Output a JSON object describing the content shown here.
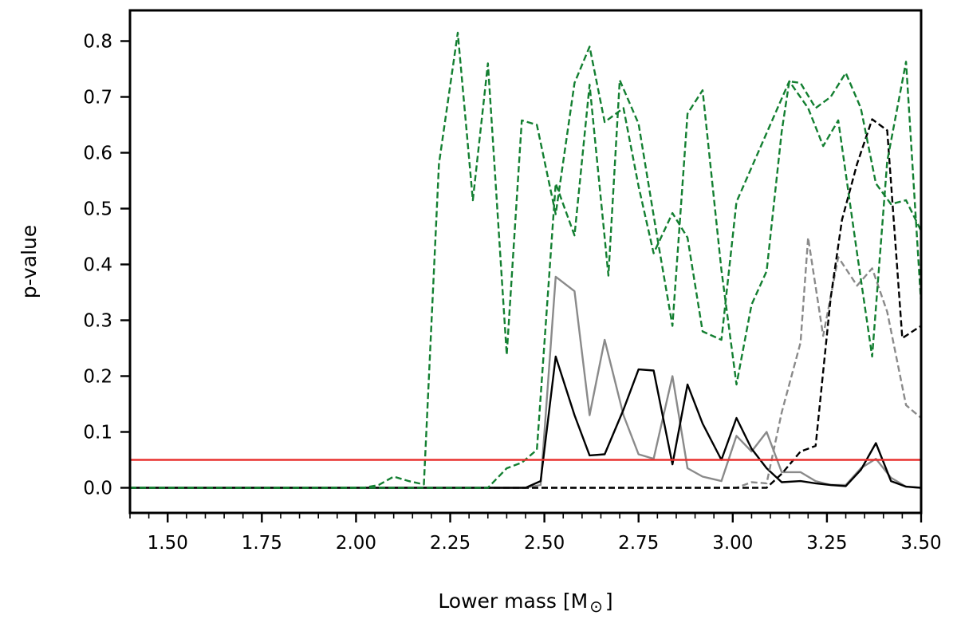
{
  "chart_data": {
    "type": "line",
    "xlabel": "Lower mass [M",
    "xlabel_unit_symbol": "⊙",
    "xlabel_suffix": "]",
    "ylabel": "p-value",
    "xlim": [
      1.4,
      3.5
    ],
    "ylim": [
      -0.045,
      0.855
    ],
    "xticks": [
      1.5,
      1.75,
      2.0,
      2.25,
      2.5,
      2.75,
      3.0,
      3.25,
      3.5
    ],
    "xtick_labels": [
      "1.50",
      "1.75",
      "2.00",
      "2.25",
      "2.50",
      "2.75",
      "3.00",
      "3.25",
      "3.50"
    ],
    "yticks": [
      0.0,
      0.1,
      0.2,
      0.3,
      0.4,
      0.5,
      0.6,
      0.7,
      0.8
    ],
    "ytick_labels": [
      "0.0",
      "0.1",
      "0.2",
      "0.3",
      "0.4",
      "0.5",
      "0.6",
      "0.7",
      "0.8"
    ],
    "x_minor_step": 0.05,
    "grid": false,
    "threshold": {
      "y": 0.05,
      "color": "#e8302f"
    },
    "series": [
      {
        "color": "#8a8a8a",
        "dashed": false,
        "x": [
          1.4,
          2.45,
          2.49,
          2.53,
          2.58,
          2.62,
          2.66,
          2.71,
          2.75,
          2.79,
          2.84,
          2.88,
          2.92,
          2.97,
          3.01,
          3.05,
          3.09,
          3.13,
          3.18,
          3.22,
          3.26,
          3.3,
          3.34,
          3.38,
          3.42,
          3.46,
          3.5
        ],
        "y": [
          0.0,
          0.0,
          0.005,
          0.378,
          0.352,
          0.13,
          0.265,
          0.13,
          0.06,
          0.052,
          0.2,
          0.035,
          0.02,
          0.012,
          0.093,
          0.065,
          0.1,
          0.028,
          0.028,
          0.012,
          0.005,
          0.005,
          0.035,
          0.052,
          0.018,
          0.002,
          0.0
        ]
      },
      {
        "color": "#000000",
        "dashed": false,
        "x": [
          1.4,
          2.45,
          2.49,
          2.53,
          2.58,
          2.62,
          2.66,
          2.71,
          2.75,
          2.79,
          2.84,
          2.88,
          2.92,
          2.97,
          3.01,
          3.05,
          3.09,
          3.13,
          3.18,
          3.22,
          3.26,
          3.3,
          3.34,
          3.38,
          3.42,
          3.46,
          3.5
        ],
        "y": [
          0.0,
          0.0,
          0.012,
          0.235,
          0.13,
          0.058,
          0.06,
          0.14,
          0.212,
          0.21,
          0.042,
          0.185,
          0.115,
          0.05,
          0.125,
          0.07,
          0.035,
          0.01,
          0.012,
          0.008,
          0.005,
          0.003,
          0.032,
          0.08,
          0.012,
          0.002,
          0.0
        ]
      },
      {
        "color": "#8a8a8a",
        "dashed": true,
        "x": [
          1.4,
          3.01,
          3.05,
          3.09,
          3.13,
          3.18,
          3.2,
          3.24,
          3.28,
          3.33,
          3.37,
          3.41,
          3.46,
          3.5
        ],
        "y": [
          0.0,
          0.0,
          0.01,
          0.008,
          0.135,
          0.26,
          0.448,
          0.272,
          0.413,
          0.362,
          0.393,
          0.315,
          0.148,
          0.125
        ]
      },
      {
        "color": "#000000",
        "dashed": true,
        "x": [
          1.4,
          3.05,
          3.09,
          3.13,
          3.18,
          3.22,
          3.26,
          3.29,
          3.33,
          3.37,
          3.41,
          3.45,
          3.5
        ],
        "y": [
          0.0,
          0.0,
          0.0,
          0.025,
          0.065,
          0.075,
          0.34,
          0.48,
          0.58,
          0.66,
          0.64,
          0.268,
          0.29
        ]
      },
      {
        "color": "#137f31",
        "dashed": true,
        "x": [
          1.4,
          2.35,
          2.4,
          2.44,
          2.48,
          2.53,
          2.58,
          2.62,
          2.67,
          2.7,
          2.75,
          2.8,
          2.84,
          2.88,
          2.92,
          2.97,
          3.01,
          3.05,
          3.09,
          3.13,
          3.15,
          3.18,
          3.22,
          3.26,
          3.3,
          3.34,
          3.38,
          3.42,
          3.46,
          3.5
        ],
        "y": [
          0.0,
          0.0,
          0.035,
          0.045,
          0.068,
          0.545,
          0.452,
          0.722,
          0.38,
          0.73,
          0.652,
          0.447,
          0.29,
          0.67,
          0.712,
          0.39,
          0.185,
          0.328,
          0.388,
          0.638,
          0.728,
          0.725,
          0.68,
          0.7,
          0.743,
          0.68,
          0.545,
          0.508,
          0.515,
          0.46
        ]
      },
      {
        "color": "#137f31",
        "dashed": true,
        "x": [
          1.4,
          2.02,
          2.06,
          2.1,
          2.14,
          2.18,
          2.22,
          2.27,
          2.31,
          2.35,
          2.4,
          2.44,
          2.48,
          2.53,
          2.58,
          2.62,
          2.66,
          2.71,
          2.75,
          2.79,
          2.84,
          2.88,
          2.92,
          2.97,
          3.01,
          3.15,
          3.2,
          3.24,
          3.28,
          3.33,
          3.37,
          3.41,
          3.46,
          3.5
        ],
        "y": [
          0.0,
          0.0,
          0.005,
          0.02,
          0.012,
          0.006,
          0.58,
          0.815,
          0.515,
          0.76,
          0.238,
          0.658,
          0.65,
          0.49,
          0.725,
          0.79,
          0.655,
          0.68,
          0.54,
          0.42,
          0.492,
          0.448,
          0.28,
          0.265,
          0.512,
          0.728,
          0.68,
          0.612,
          0.658,
          0.42,
          0.235,
          0.585,
          0.763,
          0.33
        ]
      }
    ]
  }
}
